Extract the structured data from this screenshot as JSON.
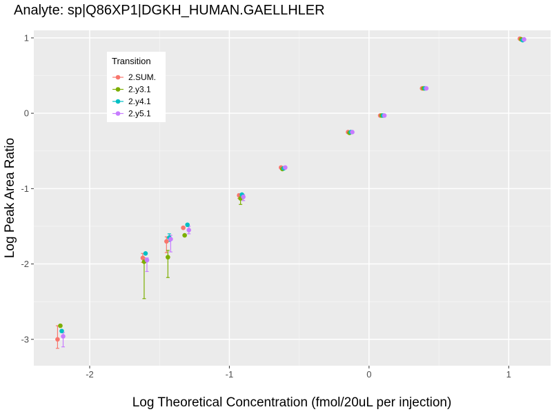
{
  "chart_data": {
    "type": "scatter",
    "title": "Analyte: sp|Q86XP1|DGKH_HUMAN.GAELLHLER",
    "xlabel": "Log Theoretical Concentration (fmol/20uL per injection)",
    "ylabel": "Log Peak Area Ratio",
    "xlim": [
      -2.4,
      1.3
    ],
    "ylim": [
      -3.35,
      1.1
    ],
    "x_ticks": [
      -2,
      -1,
      0,
      1
    ],
    "x_tick_labels": [
      "-2",
      "-1",
      "0",
      "1"
    ],
    "y_ticks": [
      -3,
      -2,
      -1,
      0,
      1
    ],
    "y_tick_labels": [
      "-3",
      "-2",
      "-1",
      "0",
      "1"
    ],
    "grid": true,
    "legend": {
      "title": "Transition",
      "position": "top-left"
    },
    "series": [
      {
        "name": "2.SUM.",
        "color": "#F8766D",
        "points": [
          {
            "x": -2.23,
            "y": -3.0,
            "ylow": -3.12,
            "yhigh": -2.82
          },
          {
            "x": -1.62,
            "y": -1.92,
            "ylow": -1.98,
            "yhigh": -1.86
          },
          {
            "x": -1.45,
            "y": -1.7,
            "ylow": -1.85,
            "yhigh": -1.64
          },
          {
            "x": -1.33,
            "y": -1.52
          },
          {
            "x": -0.93,
            "y": -1.09,
            "ylow": -1.13,
            "yhigh": -1.07
          },
          {
            "x": -0.63,
            "y": -0.72
          },
          {
            "x": -0.15,
            "y": -0.25
          },
          {
            "x": 0.08,
            "y": -0.03
          },
          {
            "x": 0.38,
            "y": 0.33
          },
          {
            "x": 1.08,
            "y": 0.99
          }
        ]
      },
      {
        "name": "2.y3.1",
        "color": "#7CAE00",
        "points": [
          {
            "x": -2.21,
            "y": -2.82
          },
          {
            "x": -1.61,
            "y": -1.97,
            "ylow": -2.46,
            "yhigh": -1.92
          },
          {
            "x": -1.44,
            "y": -1.91,
            "ylow": -2.18,
            "yhigh": -1.82
          },
          {
            "x": -1.32,
            "y": -1.62
          },
          {
            "x": -0.92,
            "y": -1.13,
            "ylow": -1.21,
            "yhigh": -1.09
          },
          {
            "x": -0.62,
            "y": -0.74
          },
          {
            "x": -0.14,
            "y": -0.26
          },
          {
            "x": 0.09,
            "y": -0.03
          },
          {
            "x": 0.39,
            "y": 0.33
          },
          {
            "x": 1.09,
            "y": 0.98
          }
        ]
      },
      {
        "name": "2.y4.1",
        "color": "#00BFC4",
        "points": [
          {
            "x": -2.2,
            "y": -2.89
          },
          {
            "x": -1.6,
            "y": -1.86
          },
          {
            "x": -1.43,
            "y": -1.65,
            "ylow": -1.7,
            "yhigh": -1.6
          },
          {
            "x": -1.3,
            "y": -1.48
          },
          {
            "x": -0.91,
            "y": -1.08
          },
          {
            "x": -0.61,
            "y": -0.73
          },
          {
            "x": -0.13,
            "y": -0.25
          },
          {
            "x": 0.1,
            "y": -0.03
          },
          {
            "x": 0.4,
            "y": 0.33
          },
          {
            "x": 1.1,
            "y": 0.97
          }
        ]
      },
      {
        "name": "2.y5.1",
        "color": "#C77CFF",
        "points": [
          {
            "x": -2.19,
            "y": -2.96,
            "ylow": -3.1,
            "yhigh": -2.91
          },
          {
            "x": -1.59,
            "y": -1.95,
            "ylow": -2.1,
            "yhigh": -1.92
          },
          {
            "x": -1.42,
            "y": -1.67,
            "ylow": -1.84,
            "yhigh": -1.62
          },
          {
            "x": -1.29,
            "y": -1.55,
            "ylow": -1.6,
            "yhigh": -1.5
          },
          {
            "x": -0.9,
            "y": -1.11,
            "ylow": -1.16,
            "yhigh": -1.08
          },
          {
            "x": -0.6,
            "y": -0.72
          },
          {
            "x": -0.12,
            "y": -0.25
          },
          {
            "x": 0.11,
            "y": -0.03
          },
          {
            "x": 0.41,
            "y": 0.33
          },
          {
            "x": 1.11,
            "y": 0.98
          }
        ]
      }
    ]
  }
}
